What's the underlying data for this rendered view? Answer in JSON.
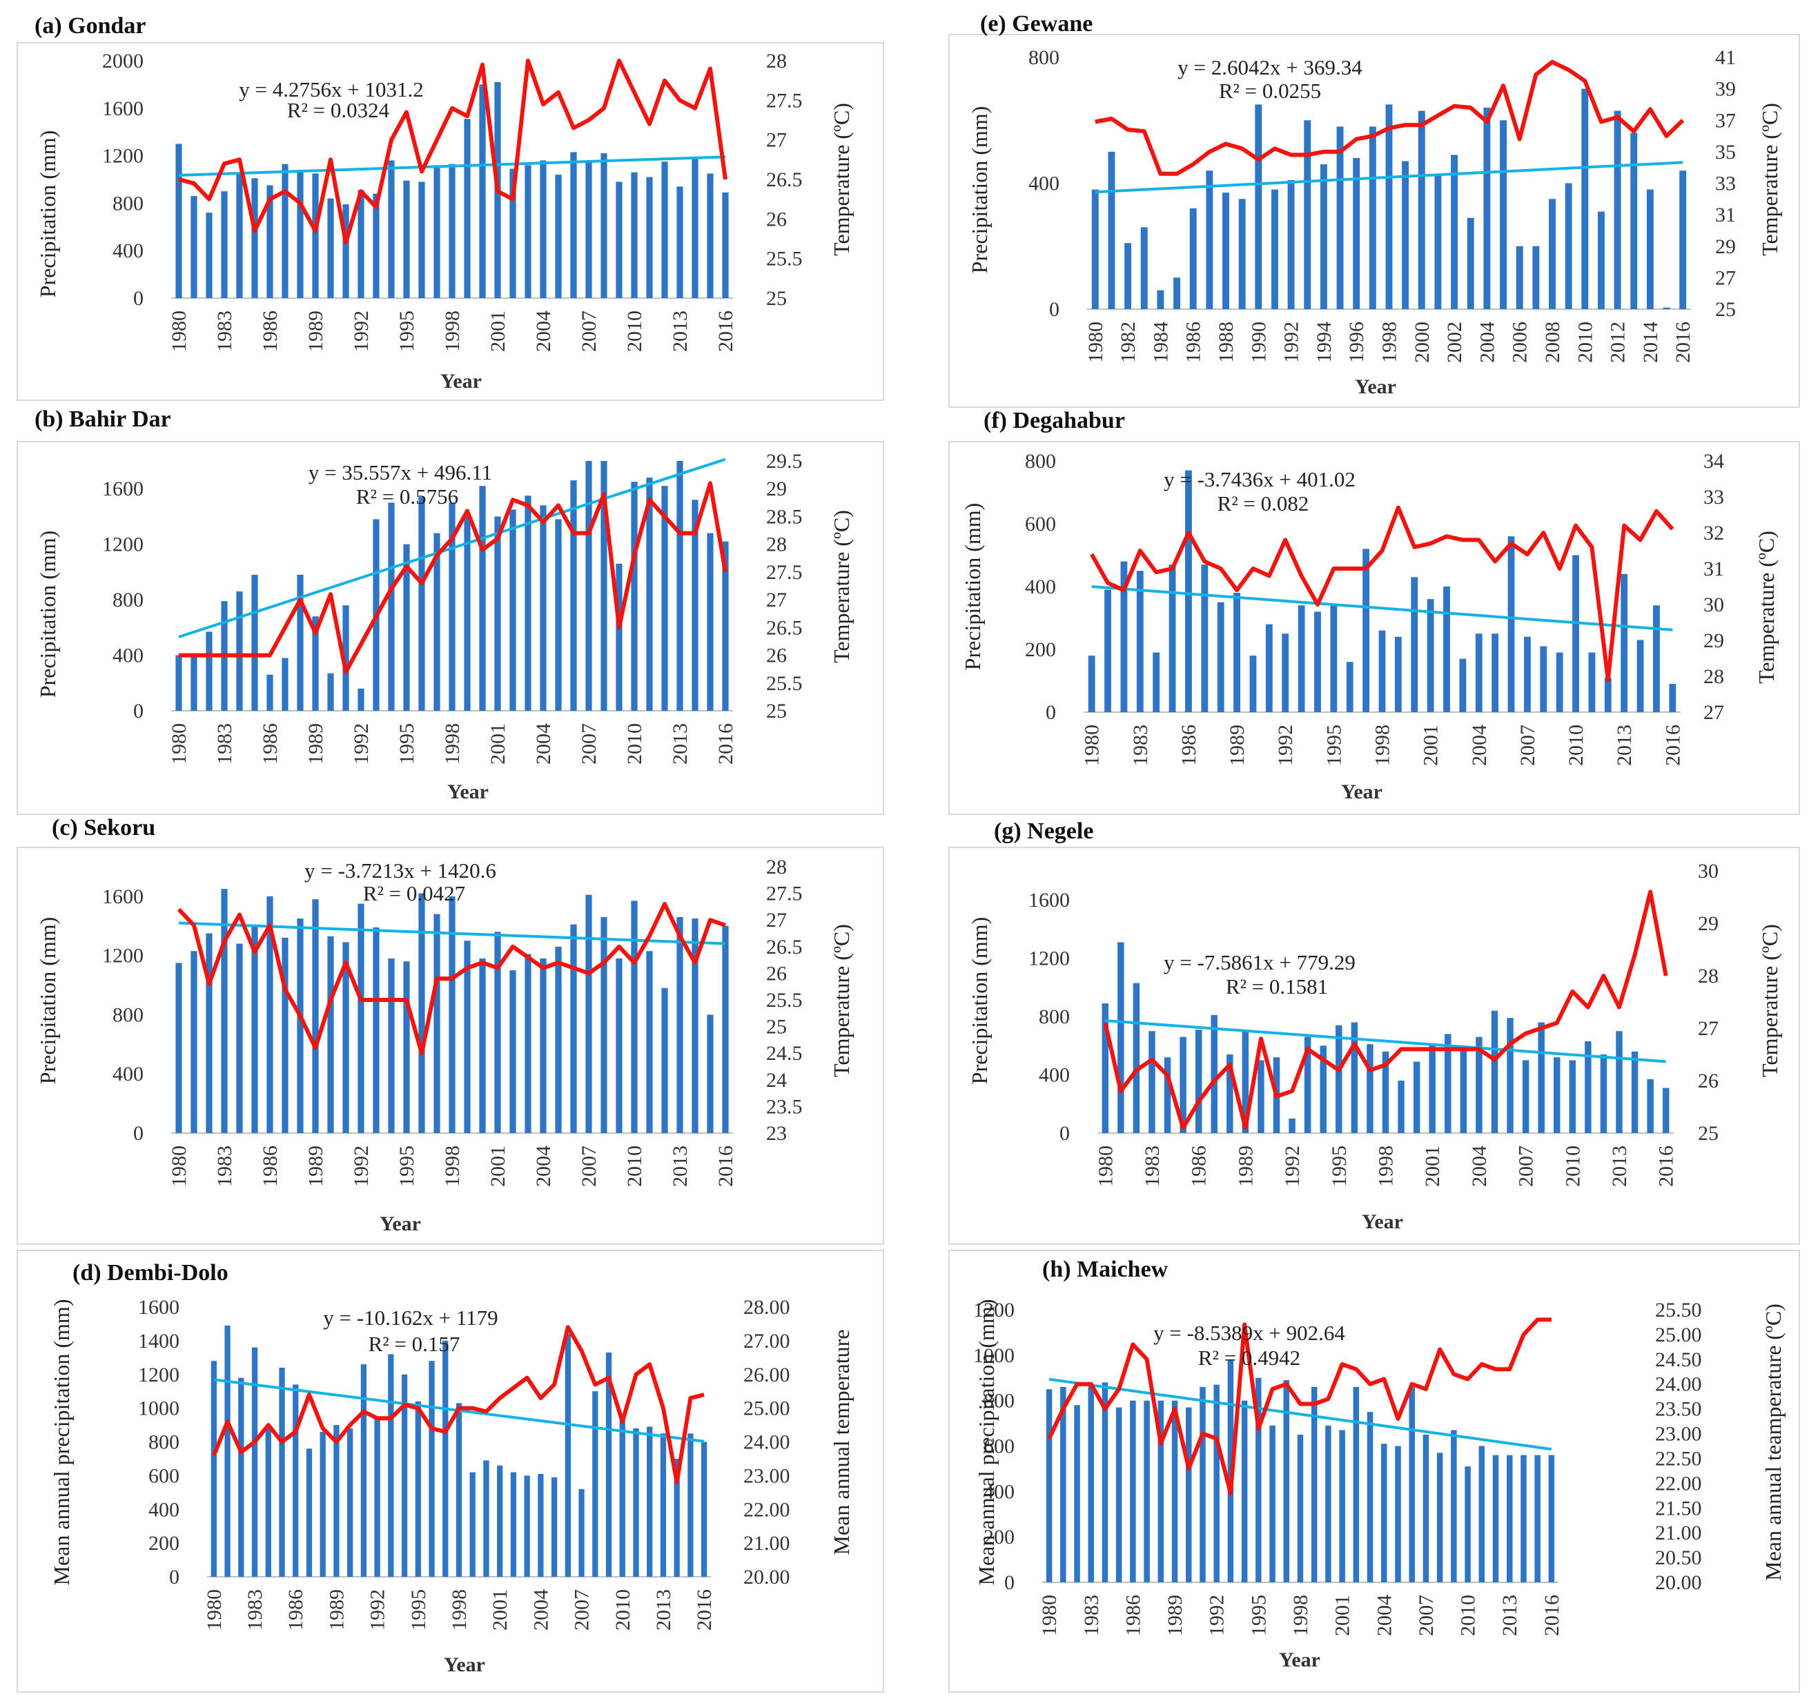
{
  "figure": {
    "colors": {
      "bar": "#2E75C6",
      "temperature_line": "#F2150F",
      "trend_line": "#13B2E6",
      "panel_border": "#D9D9D9"
    }
  },
  "chart_data": [
    {
      "panel": "a",
      "type": "bar+line",
      "title": "(a) Gondar",
      "xlabel": "Year",
      "ylabel": "Precipitation (mm)",
      "y2label": "Temperature (ºC)",
      "years_start": 1980,
      "x_tick_labels": [
        "1980",
        "1983",
        "1986",
        "1989",
        "1992",
        "1995",
        "1998",
        "2001",
        "2004",
        "2007",
        "2010",
        "2013",
        "2016"
      ],
      "ylim": [
        0,
        2000
      ],
      "y_ticks": [
        0,
        400,
        800,
        1200,
        1600,
        2000
      ],
      "y2lim": [
        25,
        28
      ],
      "y2_ticks": [
        25,
        25.5,
        26,
        26.5,
        27,
        27.5,
        28
      ],
      "trend": {
        "equation": "y = 4.2756x + 1031.2",
        "r2": "R² = 0.0324",
        "start": 1035,
        "end": 1190
      },
      "precipitation": [
        1300,
        860,
        720,
        900,
        1050,
        1010,
        950,
        1130,
        1080,
        1050,
        840,
        790,
        910,
        880,
        1160,
        990,
        980,
        1110,
        1130,
        1510,
        1800,
        1820,
        1090,
        1120,
        1160,
        1040,
        1230,
        1150,
        1220,
        980,
        1060,
        1020,
        1150,
        940,
        1170,
        1050,
        890
      ],
      "temperature": [
        26.5,
        26.45,
        26.25,
        26.7,
        26.75,
        25.85,
        26.25,
        26.35,
        26.2,
        25.85,
        26.75,
        25.7,
        26.35,
        26.15,
        27.0,
        27.35,
        26.6,
        27.0,
        27.4,
        27.3,
        27.95,
        26.35,
        26.25,
        28.0,
        27.45,
        27.6,
        27.15,
        27.25,
        27.4,
        28.0,
        27.6,
        27.2,
        27.75,
        27.5,
        27.4,
        27.9,
        26.5
      ]
    },
    {
      "panel": "b",
      "type": "bar+line",
      "title": "(b) Bahir Dar",
      "xlabel": "Year",
      "ylabel": "Precipitation (mm)",
      "y2label": "Temperature (ºC)",
      "years_start": 1980,
      "x_tick_labels": [
        "1980",
        "1983",
        "1986",
        "1989",
        "1992",
        "1995",
        "1998",
        "2001",
        "2004",
        "2007",
        "2010",
        "2013",
        "2016"
      ],
      "ylim": [
        0,
        1800
      ],
      "y_ticks": [
        0,
        400,
        800,
        1200,
        1600
      ],
      "y2lim": [
        25,
        29.5
      ],
      "y2_ticks": [
        25,
        25.5,
        26,
        26.5,
        27,
        27.5,
        28,
        28.5,
        29,
        29.5
      ],
      "trend": {
        "equation": "y = 35.557x + 496.11",
        "r2": "R² = 0.5756",
        "start": 532,
        "end": 1812
      },
      "precipitation": [
        400,
        400,
        570,
        790,
        860,
        980,
        260,
        380,
        980,
        680,
        270,
        760,
        160,
        1380,
        1500,
        1200,
        1540,
        1280,
        1500,
        1420,
        1620,
        1400,
        1450,
        1550,
        1480,
        1380,
        1660,
        1800,
        1800,
        1060,
        1650,
        1680,
        1620,
        1800,
        1520,
        1280,
        1220
      ],
      "temperature": [
        26.0,
        26.0,
        26.0,
        26.0,
        26.0,
        26.0,
        26.0,
        26.5,
        27.0,
        26.4,
        27.1,
        25.7,
        26.2,
        26.7,
        27.2,
        27.6,
        27.3,
        27.8,
        28.1,
        28.6,
        27.9,
        28.1,
        28.8,
        28.7,
        28.4,
        28.7,
        28.2,
        28.2,
        28.9,
        26.5,
        27.8,
        28.8,
        28.5,
        28.2,
        28.2,
        29.1,
        27.5
      ]
    },
    {
      "panel": "c",
      "type": "bar+line",
      "title": "(c) Sekoru",
      "xlabel": "Year",
      "ylabel": "Precipitation (mm)",
      "y2label": "Temperature (ºC)",
      "years_start": 1980,
      "x_tick_labels": [
        "1980",
        "1983",
        "1986",
        "1989",
        "1992",
        "1995",
        "1998",
        "2001",
        "2004",
        "2007",
        "2010",
        "2013",
        "2016"
      ],
      "ylim": [
        0,
        1800
      ],
      "y_ticks": [
        0,
        400,
        800,
        1200,
        1600
      ],
      "y2lim": [
        23,
        28
      ],
      "y2_ticks": [
        23,
        23.5,
        24,
        24.5,
        25,
        25.5,
        26,
        26.5,
        27,
        27.5,
        28
      ],
      "trend": {
        "equation": "y = -3.7213x + 1420.6",
        "r2": "R² = 0.0427",
        "start": 1420,
        "end": 1280
      },
      "precipitation": [
        1150,
        1230,
        1350,
        1650,
        1280,
        1400,
        1600,
        1320,
        1450,
        1580,
        1330,
        1290,
        1550,
        1390,
        1180,
        1160,
        1620,
        1480,
        1600,
        1300,
        1180,
        1360,
        1100,
        1210,
        1180,
        1260,
        1410,
        1610,
        1460,
        1180,
        1570,
        1230,
        980,
        1460,
        1450,
        800,
        1400
      ],
      "temperature": [
        27.2,
        26.9,
        25.8,
        26.6,
        27.1,
        26.4,
        26.9,
        25.7,
        25.2,
        24.6,
        25.5,
        26.2,
        25.5,
        25.5,
        25.5,
        25.5,
        24.5,
        25.9,
        25.9,
        26.1,
        26.2,
        26.1,
        26.5,
        26.3,
        26.1,
        26.2,
        26.1,
        26.0,
        26.2,
        26.5,
        26.2,
        26.7,
        27.3,
        26.7,
        26.2,
        27.0,
        26.9
      ]
    },
    {
      "panel": "d",
      "type": "bar+line",
      "title": "(d) Dembi-Dolo",
      "xlabel": "Year",
      "ylabel": "Mean annual precipitation (mm)",
      "y2label": "Mean annual temperature",
      "years_start": 1980,
      "x_tick_labels": [
        "1980",
        "1983",
        "1986",
        "1989",
        "1992",
        "1995",
        "1998",
        "2001",
        "2004",
        "2007",
        "2010",
        "2013",
        "2016"
      ],
      "ylim": [
        0,
        1600
      ],
      "y_ticks": [
        0,
        200,
        400,
        600,
        800,
        1000,
        1200,
        1400,
        1600
      ],
      "y_tick_labels": [
        "0",
        "200",
        "400",
        "600",
        "800",
        "1000",
        "1200",
        "1400",
        "1600"
      ],
      "y2lim": [
        20,
        28
      ],
      "y2_ticks": [
        20,
        21,
        22,
        23,
        24,
        25,
        26,
        27,
        28
      ],
      "y2_tick_labels": [
        "20.00",
        "21.00",
        "22.00",
        "23.00",
        "24.00",
        "25.00",
        "26.00",
        "27.00",
        "28.00"
      ],
      "trend": {
        "equation": "y = -10.162x + 1179",
        "r2": "R² = 0.157",
        "start": 1169,
        "end": 803
      },
      "precipitation": [
        1280,
        1490,
        1180,
        1360,
        890,
        1240,
        1140,
        760,
        860,
        900,
        880,
        1260,
        940,
        1320,
        1200,
        1040,
        1280,
        1400,
        1030,
        620,
        690,
        660,
        620,
        600,
        610,
        590,
        1440,
        520,
        1100,
        1330,
        930,
        880,
        890,
        850,
        700,
        850,
        800
      ],
      "temperature": [
        23.6,
        24.6,
        23.7,
        24.0,
        24.5,
        24.0,
        24.3,
        25.4,
        24.4,
        24.0,
        24.5,
        24.9,
        24.7,
        24.7,
        25.1,
        25.0,
        24.4,
        24.3,
        25.0,
        25.0,
        24.9,
        25.3,
        25.6,
        25.9,
        25.3,
        25.7,
        27.4,
        26.7,
        25.7,
        25.9,
        24.6,
        26.0,
        26.3,
        25.0,
        22.8,
        25.3,
        25.4
      ]
    },
    {
      "panel": "e",
      "type": "bar+line",
      "title": "(e) Gewane",
      "xlabel": "Year",
      "ylabel": "Precipitation (mm)",
      "y2label": "Temperature (ºC)",
      "years_start": 1980,
      "x_tick_labels": [
        "1980",
        "1982",
        "1984",
        "1986",
        "1988",
        "1990",
        "1992",
        "1994",
        "1996",
        "1998",
        "2000",
        "2002",
        "2004",
        "2006",
        "2008",
        "2010",
        "2012",
        "2014",
        "2016"
      ],
      "ylim": [
        0,
        800
      ],
      "y_ticks": [
        0,
        400,
        800
      ],
      "y2lim": [
        25,
        41
      ],
      "y2_ticks": [
        25,
        27,
        29,
        31,
        33,
        35,
        37,
        39,
        41
      ],
      "trend": {
        "equation": "y = 2.6042x + 369.34",
        "r2": "R² = 0.0255",
        "start": 372,
        "end": 466
      },
      "precipitation": [
        380,
        500,
        210,
        260,
        60,
        100,
        320,
        440,
        370,
        350,
        650,
        380,
        410,
        600,
        460,
        580,
        480,
        580,
        650,
        470,
        630,
        430,
        490,
        290,
        640,
        600,
        200,
        200,
        350,
        400,
        700,
        310,
        630,
        560,
        380,
        5,
        440
      ],
      "temperature": [
        36.9,
        37.1,
        36.4,
        36.3,
        33.6,
        33.6,
        34.2,
        35.0,
        35.5,
        35.2,
        34.5,
        35.2,
        34.8,
        34.8,
        35.0,
        35.0,
        35.8,
        36.0,
        36.5,
        36.7,
        36.7,
        37.3,
        37.9,
        37.8,
        36.9,
        39.2,
        35.8,
        39.9,
        40.7,
        40.2,
        39.5,
        36.9,
        37.2,
        36.3,
        37.7,
        36.0,
        37.0
      ]
    },
    {
      "panel": "f",
      "type": "bar+line",
      "title": "(f) Degahabur",
      "xlabel": "Year",
      "ylabel": "Precipitation (mm)",
      "y2label": "Temperature (ºC)",
      "years_start": 1980,
      "x_tick_labels": [
        "1980",
        "1983",
        "1986",
        "1989",
        "1992",
        "1995",
        "1998",
        "2001",
        "2004",
        "2007",
        "2010",
        "2013",
        "2016"
      ],
      "ylim": [
        0,
        800
      ],
      "y_ticks": [
        0,
        200,
        400,
        600,
        800
      ],
      "y2lim": [
        27,
        34
      ],
      "y2_ticks": [
        27,
        28,
        29,
        30,
        31,
        32,
        33,
        34
      ],
      "trend": {
        "equation": "y = -3.7436x + 401.02",
        "r2": "R² = 0.082",
        "start": 400,
        "end": 262
      },
      "precipitation": [
        180,
        390,
        480,
        450,
        190,
        470,
        770,
        470,
        350,
        380,
        180,
        280,
        250,
        340,
        320,
        340,
        160,
        520,
        260,
        240,
        430,
        360,
        400,
        170,
        250,
        250,
        560,
        240,
        210,
        190,
        500,
        190,
        110,
        440,
        230,
        340,
        90
      ],
      "temperature": [
        31.4,
        30.6,
        30.4,
        31.5,
        30.9,
        31.0,
        32.0,
        31.2,
        31.0,
        30.4,
        31.0,
        30.8,
        31.8,
        30.8,
        30.0,
        31.0,
        31.0,
        31.0,
        31.5,
        32.7,
        31.6,
        31.7,
        31.9,
        31.8,
        31.8,
        31.2,
        31.7,
        31.4,
        32.0,
        31.0,
        32.2,
        31.6,
        27.9,
        32.2,
        31.8,
        32.6,
        32.1
      ]
    },
    {
      "panel": "g",
      "type": "bar+line",
      "title": "(g) Negele",
      "xlabel": "Year",
      "ylabel": "Precipitation (mm)",
      "y2label": "Temperature (ºC)",
      "years_start": 1980,
      "x_tick_labels": [
        "1980",
        "1983",
        "1986",
        "1989",
        "1992",
        "1995",
        "1998",
        "2001",
        "2004",
        "2007",
        "2010",
        "2013",
        "2016"
      ],
      "ylim": [
        0,
        1800
      ],
      "y_ticks": [
        0,
        400,
        800,
        1200,
        1600
      ],
      "y2lim": [
        25,
        30
      ],
      "y2_ticks": [
        25,
        26,
        27,
        28,
        29,
        30
      ],
      "trend": {
        "equation": "y = -7.5861x + 779.29",
        "r2": "R² = 0.1581",
        "start": 772,
        "end": 491
      },
      "precipitation": [
        890,
        1310,
        1030,
        700,
        520,
        660,
        710,
        810,
        540,
        700,
        500,
        520,
        100,
        660,
        600,
        740,
        760,
        610,
        560,
        360,
        490,
        600,
        680,
        600,
        660,
        840,
        790,
        500,
        760,
        520,
        500,
        630,
        540,
        700,
        560,
        370,
        310
      ],
      "temperature": [
        27.1,
        25.8,
        26.2,
        26.4,
        26.1,
        25.1,
        25.6,
        26.0,
        26.3,
        25.1,
        26.8,
        25.7,
        25.8,
        26.6,
        26.4,
        26.2,
        26.7,
        26.2,
        26.3,
        26.6,
        26.6,
        26.6,
        26.6,
        26.6,
        26.6,
        26.4,
        26.7,
        26.9,
        27.0,
        27.1,
        27.7,
        27.4,
        28.0,
        27.4,
        28.4,
        29.6,
        28.0
      ]
    },
    {
      "panel": "h",
      "type": "bar+line",
      "title": "(h) Maichew",
      "xlabel": "Year",
      "ylabel": "Mean annual precipitation (mm)",
      "y2label": "Mean annual teamperature (ºC)",
      "years_start": 1980,
      "x_tick_labels": [
        "1980",
        "1983",
        "1986",
        "1989",
        "1992",
        "1995",
        "1998",
        "2001",
        "2004",
        "2007",
        "2010",
        "2013",
        "2016"
      ],
      "ylim": [
        0,
        1200
      ],
      "y_ticks": [
        0,
        200,
        400,
        600,
        800,
        1000,
        1200
      ],
      "y_tick_labels": [
        "0",
        "200",
        "400",
        "600",
        "800",
        "1000",
        "1200"
      ],
      "y2lim": [
        20,
        25.5
      ],
      "y2_ticks": [
        20,
        20.5,
        21,
        21.5,
        22,
        22.5,
        23,
        23.5,
        24,
        24.5,
        25,
        25.5
      ],
      "y2_tick_labels": [
        "20.00",
        "20.50",
        "21.00",
        "21.50",
        "22.00",
        "22.50",
        "23.00",
        "23.50",
        "24.00",
        "24.50",
        "25.00",
        "25.50"
      ],
      "trend": {
        "equation": "y = -8.5389x + 902.64",
        "r2": "R² = 0.4942",
        "start": 894,
        "end": 586
      },
      "precipitation": [
        850,
        860,
        780,
        870,
        880,
        770,
        800,
        800,
        800,
        800,
        770,
        860,
        870,
        980,
        800,
        900,
        690,
        890,
        650,
        860,
        690,
        670,
        860,
        750,
        610,
        600,
        860,
        650,
        570,
        670,
        510,
        600,
        560,
        560,
        560,
        560,
        560
      ],
      "temperature": [
        22.9,
        23.5,
        24.0,
        24.0,
        23.5,
        23.9,
        24.8,
        24.5,
        22.8,
        23.5,
        22.3,
        23.0,
        22.9,
        21.8,
        25.2,
        23.1,
        23.9,
        24.0,
        23.6,
        23.6,
        23.7,
        24.4,
        24.3,
        24.0,
        24.1,
        23.3,
        24.0,
        23.9,
        24.7,
        24.2,
        24.1,
        24.4,
        24.3,
        24.3,
        25.0,
        25.3,
        25.3
      ]
    }
  ]
}
